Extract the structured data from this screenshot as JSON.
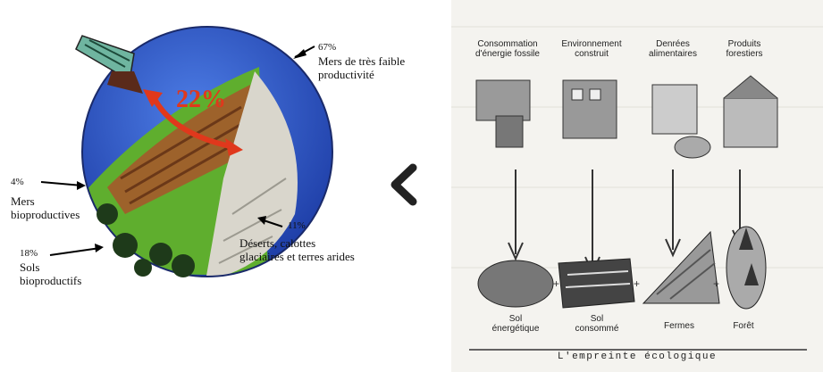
{
  "globe": {
    "center_percent": "22%",
    "labels": [
      {
        "pct": "67%",
        "text": "Mers de très faible\nproductivité"
      },
      {
        "pct": "4%",
        "text": "Mers\nbioproductives"
      },
      {
        "pct": "18%",
        "text": "Sols\nbioproductifs"
      },
      {
        "pct": "11%",
        "text": "Déserts, calottes\nglaciaires et terres arides"
      }
    ]
  },
  "nav": {
    "arrow": "chevron-left-icon"
  },
  "footprint": {
    "columns": [
      {
        "header": "Consommation\nd'énergie fossile",
        "footer": "Sol\nénergétique"
      },
      {
        "header": "Environnement\nconstruit",
        "footer": "Sol\nconsommé"
      },
      {
        "header": "Denrées\nalimentaires",
        "footer": "Fermes"
      },
      {
        "header": "Produits\nforestiers",
        "footer": "Forêt"
      }
    ],
    "caption": "L'empreinte écologique"
  },
  "colors": {
    "ocean": "#2a55c8",
    "land_green": "#5fae2e",
    "fields_brown": "#a8552a",
    "desert": "#d9d6cc",
    "arrow_red": "#e0381c"
  }
}
